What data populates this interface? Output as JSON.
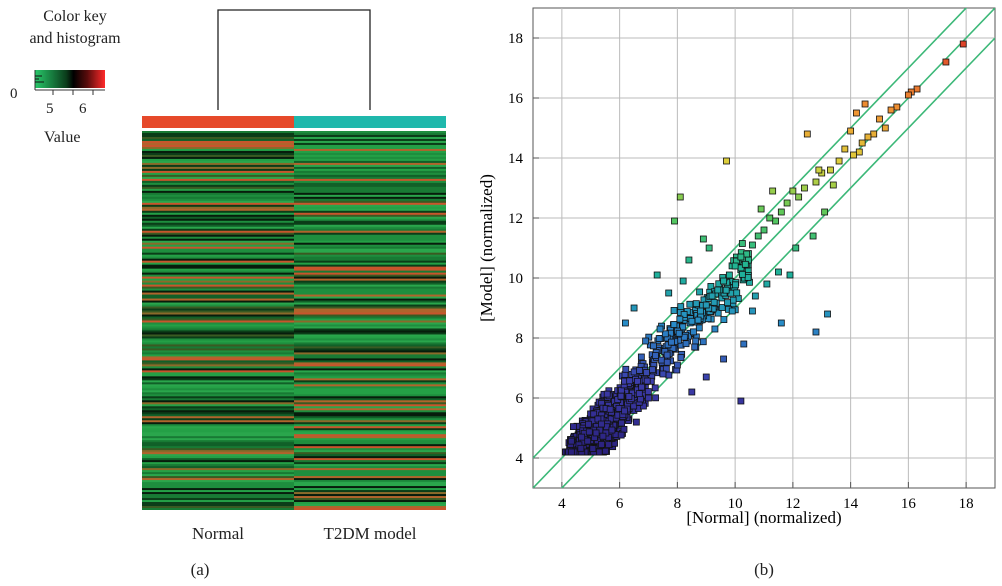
{
  "panel_a": {
    "color_key": {
      "title_line1": "Color key",
      "title_line2": "and histogram",
      "zero_label": "0",
      "ticks": [
        "5",
        "6"
      ],
      "xlabel": "Value"
    },
    "columns": [
      "Normal",
      "T2DM model"
    ],
    "column_colors": [
      "#e6492a",
      "#1fb8ac"
    ],
    "label": "(a)"
  },
  "panel_b": {
    "label": "(b)"
  },
  "chart_data": [
    {
      "type": "heatmap",
      "columns": [
        "Normal",
        "T2DM model"
      ],
      "color_key": {
        "range": [
          4,
          7
        ],
        "low_color": "#1a9a4a",
        "mid_color": "#000000",
        "high_color": "#d9322a",
        "label": "Value"
      }
    },
    {
      "type": "scatter",
      "xlabel": "[Normal] (normalized)",
      "ylabel": "[Model] (normalized)",
      "xlim": [
        3,
        19
      ],
      "ylim": [
        3,
        19
      ],
      "xticks": [
        4,
        6,
        8,
        10,
        12,
        14,
        16,
        18
      ],
      "yticks": [
        4,
        6,
        8,
        10,
        12,
        14,
        16,
        18
      ],
      "reference_lines": [
        {
          "name": "y = x",
          "intercept": 0
        },
        {
          "name": "y = x + 1",
          "intercept": 1
        },
        {
          "name": "y = x - 1",
          "intercept": -1
        }
      ],
      "grid": true,
      "points": [
        [
          17.9,
          17.8
        ],
        [
          17.3,
          17.2
        ],
        [
          16.3,
          16.3
        ],
        [
          16.1,
          16.2
        ],
        [
          16.0,
          16.1
        ],
        [
          15.6,
          15.7
        ],
        [
          15.4,
          15.6
        ],
        [
          15.2,
          15.0
        ],
        [
          15.0,
          15.3
        ],
        [
          14.8,
          14.8
        ],
        [
          14.6,
          14.7
        ],
        [
          14.4,
          14.5
        ],
        [
          14.3,
          14.2
        ],
        [
          14.1,
          14.1
        ],
        [
          14.5,
          15.8
        ],
        [
          14.2,
          15.5
        ],
        [
          14.0,
          14.9
        ],
        [
          13.8,
          14.3
        ],
        [
          13.6,
          13.9
        ],
        [
          13.3,
          13.6
        ],
        [
          13.0,
          13.5
        ],
        [
          12.8,
          13.2
        ],
        [
          12.5,
          14.8
        ],
        [
          12.4,
          13.0
        ],
        [
          12.2,
          12.7
        ],
        [
          12.0,
          12.9
        ],
        [
          11.8,
          12.5
        ],
        [
          11.6,
          12.2
        ],
        [
          11.4,
          11.9
        ],
        [
          11.2,
          12.0
        ],
        [
          11.0,
          11.6
        ],
        [
          10.8,
          11.4
        ],
        [
          10.6,
          11.1
        ],
        [
          10.4,
          10.8
        ],
        [
          10.2,
          10.7
        ],
        [
          10.0,
          10.4
        ],
        [
          9.8,
          10.1
        ],
        [
          9.6,
          9.9
        ],
        [
          9.4,
          9.6
        ],
        [
          9.2,
          9.4
        ],
        [
          9.0,
          9.1
        ],
        [
          8.8,
          8.9
        ],
        [
          9.7,
          13.9
        ],
        [
          7.9,
          11.9
        ],
        [
          7.3,
          10.1
        ],
        [
          8.1,
          12.7
        ],
        [
          8.9,
          11.3
        ],
        [
          10.9,
          12.3
        ],
        [
          11.3,
          12.9
        ],
        [
          12.9,
          13.6
        ],
        [
          13.1,
          12.2
        ],
        [
          13.4,
          13.1
        ],
        [
          12.1,
          11.0
        ],
        [
          11.5,
          10.2
        ],
        [
          12.7,
          11.4
        ],
        [
          13.2,
          8.8
        ],
        [
          12.8,
          8.2
        ],
        [
          11.1,
          9.8
        ],
        [
          10.6,
          8.9
        ],
        [
          11.6,
          8.5
        ],
        [
          10.3,
          7.8
        ],
        [
          9.6,
          7.3
        ],
        [
          9.0,
          6.7
        ],
        [
          10.2,
          5.9
        ],
        [
          8.5,
          6.2
        ],
        [
          7.4,
          8.3
        ],
        [
          6.9,
          7.9
        ],
        [
          6.5,
          9.0
        ],
        [
          6.2,
          8.5
        ],
        [
          7.7,
          9.5
        ],
        [
          8.2,
          9.9
        ],
        [
          8.4,
          10.6
        ],
        [
          9.1,
          11.0
        ],
        [
          7.0,
          6.0
        ],
        [
          7.5,
          6.8
        ],
        [
          8.0,
          7.1
        ],
        [
          8.6,
          7.7
        ],
        [
          9.3,
          8.3
        ],
        [
          9.9,
          8.9
        ],
        [
          10.7,
          9.4
        ],
        [
          11.9,
          10.1
        ]
      ]
    }
  ]
}
